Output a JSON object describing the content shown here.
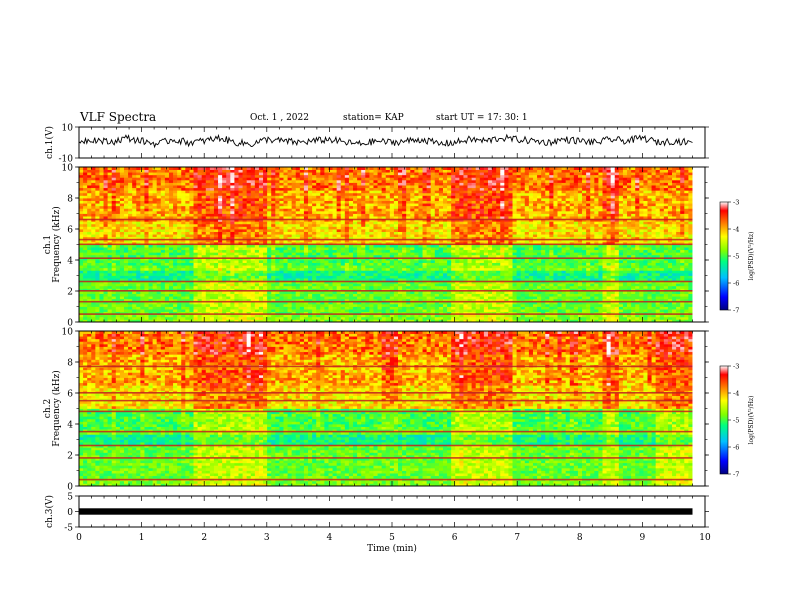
{
  "header": {
    "title": "VLF Spectra",
    "date": "Oct. 1 , 2022",
    "station": "station= KAP",
    "start": "start UT = 17: 30: 1"
  },
  "colors": {
    "colormap": [
      "#000080",
      "#0000ff",
      "#00c0ff",
      "#00ff80",
      "#80ff00",
      "#ffff00",
      "#ff8000",
      "#ff0000",
      "#ffffff"
    ],
    "trace": "#000000",
    "frame": "#000000"
  },
  "chart_data": [
    {
      "type": "line",
      "panel": "ch1-waveform",
      "ylabel": "ch.1(V)",
      "ylim": [
        -10,
        10
      ],
      "yticks": [
        "10",
        "-10"
      ],
      "x": [
        0,
        0.25,
        0.5,
        0.75,
        1,
        1.25,
        1.5,
        1.75,
        2,
        2.25,
        2.5,
        2.75,
        3,
        3.25,
        3.5,
        3.75,
        4,
        4.25,
        4.5,
        4.75,
        5,
        5.25,
        5.5,
        5.75,
        6,
        6.25,
        6.5,
        6.75,
        7,
        7.25,
        7.5,
        7.75,
        8,
        8.25,
        8.5,
        8.75,
        9,
        9.25,
        9.5,
        9.75
      ],
      "y": [
        1,
        2,
        0,
        3,
        1,
        -1,
        2,
        0,
        1,
        3,
        0,
        -1,
        2,
        1,
        0,
        1,
        2,
        0,
        -1,
        1,
        0,
        1,
        2,
        -1,
        0,
        2,
        1,
        3,
        2,
        1,
        0,
        2,
        1,
        0,
        2,
        1,
        3,
        0,
        1,
        0
      ]
    },
    {
      "type": "heatmap",
      "panel": "ch1-spectrogram",
      "ylabel_channel": "ch.1",
      "ylabel": "Frequency (kHz)",
      "ylim": [
        0,
        10
      ],
      "yticks": [
        "0",
        "2",
        "4",
        "6",
        "8",
        "10"
      ],
      "colorbar": {
        "label": "log(PSD)(V²/Hz)",
        "range": [
          -7,
          -3
        ],
        "ticks": [
          "-3",
          "-4",
          "-5",
          "-6",
          "-7"
        ]
      },
      "segments_min": [
        0,
        1.8,
        3.0,
        5.9,
        6.9,
        8.3,
        8.6
      ],
      "line_freqs_khz": [
        0.5,
        1.3,
        2.0,
        2.6,
        4.1,
        5.0,
        5.3,
        6.6
      ]
    },
    {
      "type": "heatmap",
      "panel": "ch2-spectrogram",
      "ylabel_channel": "ch.2",
      "ylabel": "Frequency (kHz)",
      "ylim": [
        0,
        10
      ],
      "yticks": [
        "0",
        "2",
        "4",
        "6",
        "8",
        "10"
      ],
      "colorbar": {
        "label": "log(PSD)(V²/Hz)",
        "range": [
          -7,
          -3
        ],
        "ticks": [
          "-3",
          "-4",
          "-5",
          "-6",
          "-7"
        ]
      },
      "segments_min": [
        0,
        1.8,
        3.0,
        5.9,
        6.9,
        8.3,
        8.6,
        9.2
      ],
      "line_freqs_khz": [
        0.4,
        1.8,
        2.6,
        3.5,
        4.8,
        5.5,
        6.0,
        7.7
      ]
    },
    {
      "type": "line",
      "panel": "ch3-waveform",
      "ylabel": "ch.3(V)",
      "ylim": [
        -5,
        5
      ],
      "yticks": [
        "5",
        "0",
        "-5"
      ],
      "x": [
        0,
        9.8
      ],
      "y": [
        0,
        0
      ]
    }
  ],
  "xaxis": {
    "label": "Time (min)",
    "ticks": [
      "0",
      "1",
      "2",
      "3",
      "4",
      "5",
      "6",
      "7",
      "8",
      "9",
      "10"
    ],
    "xlim": [
      0,
      10
    ]
  }
}
